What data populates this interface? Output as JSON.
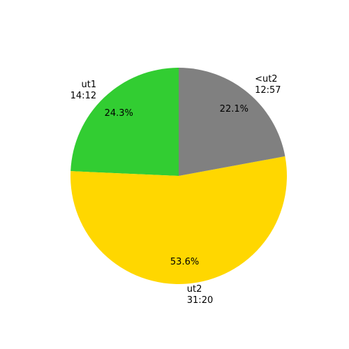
{
  "chart_data": {
    "type": "pie",
    "categories": [
      "ut1",
      "ut2",
      "<ut2"
    ],
    "durations": [
      "14:12",
      "31:20",
      "12:57"
    ],
    "values": [
      24.3,
      53.6,
      22.1
    ],
    "value_labels": [
      "24.3%",
      "53.6%",
      "22.1%"
    ],
    "colors": [
      "#32cd32",
      "#ffd700",
      "#808080"
    ],
    "start_angle": 90,
    "counterclock": true
  }
}
